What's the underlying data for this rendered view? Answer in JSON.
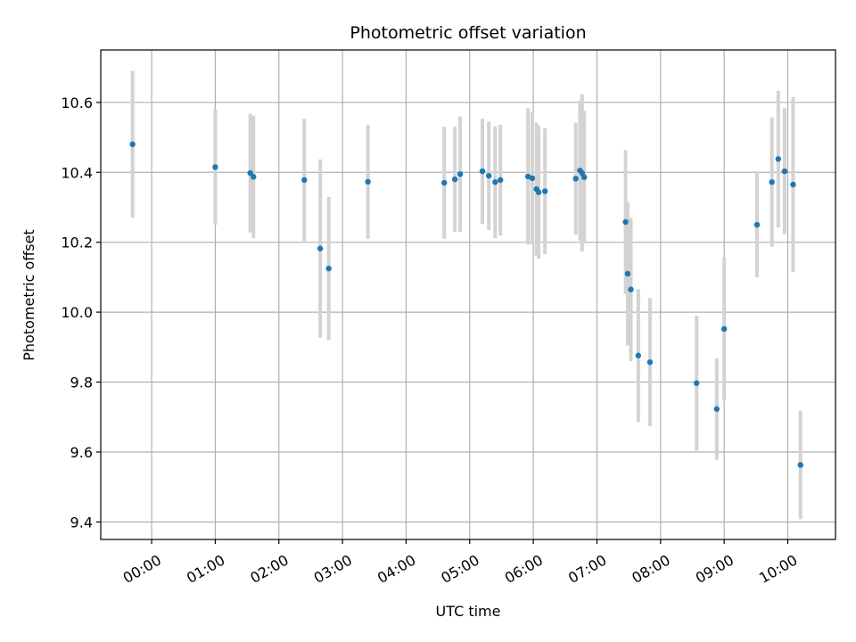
{
  "chart_data": {
    "type": "scatter",
    "title": "Photometric offset variation",
    "xlabel": "UTC time",
    "ylabel": "Photometric offset",
    "x_unit": "UTC hh:mm",
    "xlim": [
      "-00:48",
      "10:45"
    ],
    "ylim": [
      9.35,
      10.75
    ],
    "grid": true,
    "x_ticks": [
      "00:00",
      "01:00",
      "02:00",
      "03:00",
      "04:00",
      "05:00",
      "06:00",
      "07:00",
      "08:00",
      "09:00",
      "10:00"
    ],
    "y_ticks": [
      9.4,
      9.6,
      9.8,
      10.0,
      10.2,
      10.4,
      10.6
    ],
    "y_tick_labels": [
      "9.4",
      "9.6",
      "9.8",
      "10.0",
      "10.2",
      "10.4",
      "10.6"
    ],
    "colors": {
      "point": "#1f77b4",
      "errorbar": "#d3d3d3",
      "grid": "#b0b0b0"
    },
    "series": [
      {
        "points": [
          {
            "t": "-00:18",
            "y": 10.48,
            "err": 0.21
          },
          {
            "t": "01:00",
            "y": 10.415,
            "err": 0.165
          },
          {
            "t": "01:33",
            "y": 10.398,
            "err": 0.17
          },
          {
            "t": "01:36",
            "y": 10.387,
            "err": 0.175
          },
          {
            "t": "02:24",
            "y": 10.378,
            "err": 0.175
          },
          {
            "t": "02:39",
            "y": 10.182,
            "err": 0.255
          },
          {
            "t": "02:47",
            "y": 10.125,
            "err": 0.205
          },
          {
            "t": "03:24",
            "y": 10.373,
            "err": 0.163
          },
          {
            "t": "04:36",
            "y": 10.37,
            "err": 0.16
          },
          {
            "t": "04:46",
            "y": 10.38,
            "err": 0.15
          },
          {
            "t": "04:51",
            "y": 10.395,
            "err": 0.165
          },
          {
            "t": "05:12",
            "y": 10.403,
            "err": 0.15
          },
          {
            "t": "05:18",
            "y": 10.39,
            "err": 0.155
          },
          {
            "t": "05:24",
            "y": 10.372,
            "err": 0.16
          },
          {
            "t": "05:29",
            "y": 10.378,
            "err": 0.158
          },
          {
            "t": "05:55",
            "y": 10.388,
            "err": 0.195
          },
          {
            "t": "05:59",
            "y": 10.383,
            "err": 0.19
          },
          {
            "t": "06:03",
            "y": 10.352,
            "err": 0.19
          },
          {
            "t": "06:05",
            "y": 10.343,
            "err": 0.19
          },
          {
            "t": "06:11",
            "y": 10.346,
            "err": 0.18
          },
          {
            "t": "06:40",
            "y": 10.382,
            "err": 0.16
          },
          {
            "t": "06:44",
            "y": 10.405,
            "err": 0.2
          },
          {
            "t": "06:46",
            "y": 10.398,
            "err": 0.225
          },
          {
            "t": "06:48",
            "y": 10.386,
            "err": 0.19
          },
          {
            "t": "07:27",
            "y": 10.258,
            "err": 0.205
          },
          {
            "t": "07:29",
            "y": 10.11,
            "err": 0.205
          },
          {
            "t": "07:32",
            "y": 10.065,
            "err": 0.205
          },
          {
            "t": "07:39",
            "y": 9.876,
            "err": 0.19
          },
          {
            "t": "07:50",
            "y": 9.857,
            "err": 0.183
          },
          {
            "t": "08:34",
            "y": 9.797,
            "err": 0.193
          },
          {
            "t": "08:53",
            "y": 9.723,
            "err": 0.145
          },
          {
            "t": "09:00",
            "y": 9.952,
            "err": 0.205
          },
          {
            "t": "09:31",
            "y": 10.25,
            "err": 0.15
          },
          {
            "t": "09:45",
            "y": 10.372,
            "err": 0.185
          },
          {
            "t": "09:51",
            "y": 10.438,
            "err": 0.195
          },
          {
            "t": "09:57",
            "y": 10.403,
            "err": 0.18
          },
          {
            "t": "10:05",
            "y": 10.365,
            "err": 0.25
          },
          {
            "t": "10:12",
            "y": 9.563,
            "err": 0.155
          }
        ]
      }
    ]
  }
}
